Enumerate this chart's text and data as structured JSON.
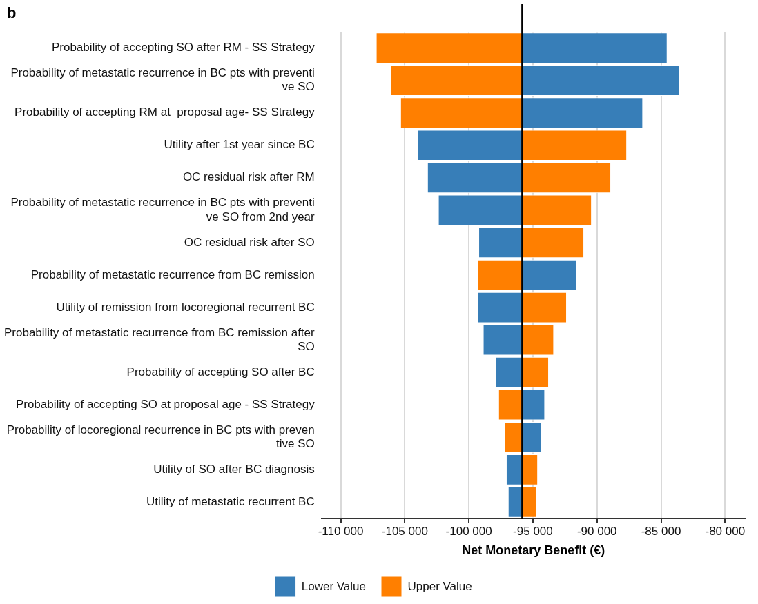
{
  "chart_data": {
    "type": "bar",
    "orientation": "horizontal",
    "title": "b",
    "xlabel": "Net Monetary Benefit (€)",
    "categories": [
      "Probability of accepting SO after RM - SS Strategy",
      "Probability of metastatic recurrence in BC pts with preventi\nve SO",
      "Probability of accepting RM at  proposal age- SS Strategy",
      "Utility after 1st year since BC",
      "OC residual risk after RM",
      "Probability of metastatic recurrence in BC pts with preventi\nve SO from 2nd year",
      "OC residual risk after SO",
      "Probability of metastatic recurrence from BC remission",
      "Utility of remission from locoregional recurrent BC",
      "Probability of metastatic recurrence from BC remission after\nSO",
      "Probability of accepting SO after BC",
      "Probability of accepting SO at proposal age - SS Strategy",
      "Probability of locoregional recurrence in BC pts with preven\ntive SO",
      "Utility of SO after BC diagnosis",
      "Utility of metastatic recurrent BC"
    ],
    "series": [
      {
        "name": "Lower Value",
        "color": "#377eb8",
        "base": [
          -95850,
          -95850,
          -95850,
          -95850,
          -95850,
          -95850,
          -95850,
          -95850,
          -95850,
          -95850,
          -95850,
          -95850,
          -95850,
          -95850,
          -95850
        ],
        "values": [
          11300,
          12250,
          9400,
          -8150,
          -7400,
          -6550,
          -3400,
          4200,
          -3500,
          -3050,
          -2100,
          1750,
          1500,
          -1250,
          -1100
        ]
      },
      {
        "name": "Upper Value",
        "color": "#ff7f00",
        "base": [
          -95850,
          -95850,
          -95850,
          -95850,
          -95850,
          -95850,
          -95850,
          -95850,
          -95850,
          -95850,
          -95850,
          -95850,
          -95850,
          -95850,
          -95850
        ],
        "values": [
          -11400,
          -10250,
          -9500,
          8150,
          6900,
          5400,
          4800,
          -3500,
          3450,
          2450,
          2050,
          -1850,
          -1400,
          1200,
          1100
        ]
      }
    ],
    "xlim": [
      -111500,
      -78400
    ],
    "xticks": [
      {
        "value": -110000,
        "label": "-110 000"
      },
      {
        "value": -105000,
        "label": "-105 000"
      },
      {
        "value": -100000,
        "label": "-100 000"
      },
      {
        "value": -95000,
        "label": "-95 000"
      },
      {
        "value": -90000,
        "label": "-90 000"
      },
      {
        "value": -85000,
        "label": "-85 000"
      },
      {
        "value": -80000,
        "label": "-80 000"
      }
    ],
    "ref_lines": [
      {
        "axis": "x",
        "value": -95850,
        "color": "#000000"
      }
    ],
    "grid": "x",
    "legend": "bottom"
  }
}
